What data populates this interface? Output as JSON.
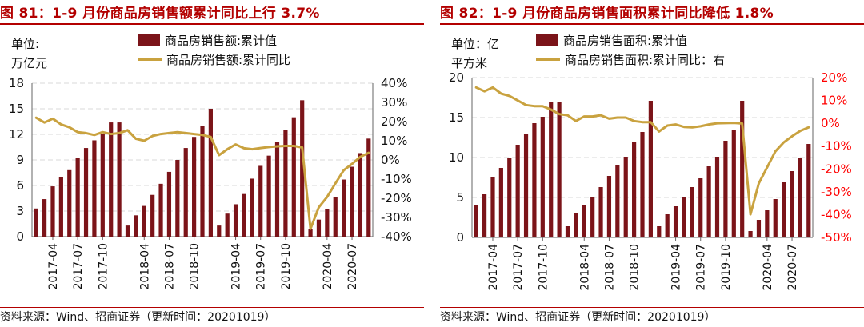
{
  "charts": [
    {
      "title": "图 81：1-9 月份商品房销售额累计同比上行 3.7%",
      "unit_line1": "单位:",
      "unit_line2": "万亿元",
      "legend_bar": "商品房销售额:累计值",
      "legend_line": "商品房销售额:累计同比",
      "source": "资料来源：Wind、招商证券（更新时间：20201019）",
      "right_axis_color": "#111111"
    },
    {
      "title": "图 82：1-9 月份商品房销售面积累计同比降低 1.8%",
      "unit_line1": "单位：亿",
      "unit_line2": "平方米",
      "legend_bar": "商品房销售面积:累计值",
      "legend_line": "商品房销售面积:累计同比：右",
      "source": "资料来源：Wind、招商证券（更新时间：20201019）",
      "right_axis_color": "#ff0000"
    }
  ],
  "colors": {
    "bar": "#7b1419",
    "line": "#c9a23f",
    "grid": "#d9d9d9",
    "title": "#b30000"
  },
  "chart_data": [
    {
      "type": "bar+line",
      "title": "1-9 月份商品房销售额累计同比上行 3.7%",
      "x": [
        "2017-02",
        "2017-03",
        "2017-04",
        "2017-05",
        "2017-06",
        "2017-07",
        "2017-08",
        "2017-09",
        "2017-10",
        "2017-11",
        "2017-12",
        "2018-02",
        "2018-03",
        "2018-04",
        "2018-05",
        "2018-06",
        "2018-07",
        "2018-08",
        "2018-09",
        "2018-10",
        "2018-11",
        "2018-12",
        "2019-02",
        "2019-03",
        "2019-04",
        "2019-05",
        "2019-06",
        "2019-07",
        "2019-08",
        "2019-09",
        "2019-10",
        "2019-11",
        "2019-12",
        "2020-02",
        "2020-03",
        "2020-04",
        "2020-05",
        "2020-06",
        "2020-07",
        "2020-08",
        "2020-09"
      ],
      "x_ticks": [
        "2017-04",
        "2017-07",
        "2017-10",
        "2018-01",
        "2018-04",
        "2018-07",
        "2018-10",
        "2019-01",
        "2019-04",
        "2019-07",
        "2019-10",
        "2020-01",
        "2020-04",
        "2020-07"
      ],
      "series": [
        {
          "name": "商品房销售额:累计值",
          "kind": "bar",
          "axis": "left",
          "values": [
            3.3,
            4.4,
            5.9,
            7.0,
            7.8,
            9.2,
            10.4,
            11.3,
            12.0,
            13.4,
            13.4,
            1.3,
            2.5,
            3.6,
            4.9,
            6.2,
            7.6,
            9.0,
            10.4,
            11.7,
            13.0,
            15.0,
            1.3,
            2.7,
            3.8,
            5.0,
            6.8,
            8.3,
            9.5,
            11.1,
            12.5,
            14.0,
            16.0,
            0.9,
            2.0,
            3.2,
            4.6,
            6.7,
            8.2,
            9.8,
            11.5
          ]
        },
        {
          "name": "商品房销售额:累计同比",
          "kind": "line",
          "axis": "right",
          "values": [
            22.0,
            19.5,
            21.5,
            18.5,
            17.0,
            14.5,
            14.0,
            13.0,
            14.5,
            13.5,
            14.0,
            15.5,
            11.0,
            10.0,
            12.5,
            13.5,
            14.0,
            14.5,
            14.0,
            13.5,
            13.0,
            12.0,
            2.5,
            5.6,
            8.1,
            6.1,
            5.6,
            6.2,
            6.7,
            7.1,
            7.3,
            7.3,
            6.5,
            -35.9,
            -24.7,
            -19.3,
            -12.3,
            -5.4,
            -2.1,
            1.6,
            3.7
          ]
        }
      ],
      "ylim_left": [
        0,
        18
      ],
      "yticks_left": [
        0,
        3,
        6,
        9,
        12,
        15,
        18
      ],
      "ylim_right": [
        -40,
        40
      ],
      "yticks_right": [
        "-40%",
        "-30%",
        "-20%",
        "-10%",
        "0%",
        "10%",
        "20%",
        "30%",
        "40%"
      ],
      "grid": true,
      "legend_position": "top"
    },
    {
      "type": "bar+line",
      "title": "1-9 月份商品房销售面积累计同比降低 1.8%",
      "x": [
        "2017-02",
        "2017-03",
        "2017-04",
        "2017-05",
        "2017-06",
        "2017-07",
        "2017-08",
        "2017-09",
        "2017-10",
        "2017-11",
        "2017-12",
        "2018-02",
        "2018-03",
        "2018-04",
        "2018-05",
        "2018-06",
        "2018-07",
        "2018-08",
        "2018-09",
        "2018-10",
        "2018-11",
        "2018-12",
        "2019-02",
        "2019-03",
        "2019-04",
        "2019-05",
        "2019-06",
        "2019-07",
        "2019-08",
        "2019-09",
        "2019-10",
        "2019-11",
        "2019-12",
        "2020-02",
        "2020-03",
        "2020-04",
        "2020-05",
        "2020-06",
        "2020-07",
        "2020-08",
        "2020-09"
      ],
      "x_ticks": [
        "2017-04",
        "2017-07",
        "2017-10",
        "2018-01",
        "2018-04",
        "2018-07",
        "2018-10",
        "2019-01",
        "2019-04",
        "2019-07",
        "2019-10",
        "2020-01",
        "2020-04",
        "2020-07"
      ],
      "series": [
        {
          "name": "商品房销售面积:累计值",
          "kind": "bar",
          "axis": "left",
          "values": [
            4.1,
            5.4,
            7.5,
            8.7,
            10.0,
            11.6,
            13.0,
            14.3,
            15.1,
            16.9,
            16.9,
            1.4,
            3.0,
            4.0,
            5.0,
            6.3,
            7.7,
            9.0,
            10.1,
            11.9,
            13.2,
            17.1,
            1.4,
            2.9,
            3.9,
            5.1,
            6.3,
            7.4,
            8.9,
            10.1,
            12.1,
            13.5,
            17.1,
            0.8,
            2.2,
            3.4,
            4.8,
            6.9,
            8.3,
            9.9,
            11.7
          ]
        },
        {
          "name": "商品房销售面积:累计同比：右",
          "kind": "line",
          "axis": "right",
          "values": [
            15.7,
            14.0,
            15.7,
            13.0,
            12.0,
            10.0,
            8.0,
            7.5,
            7.5,
            6.0,
            4.0,
            3.5,
            1.0,
            3.0,
            3.0,
            3.5,
            2.0,
            2.5,
            2.5,
            1.0,
            0.5,
            0.5,
            -3.6,
            -1.0,
            -0.5,
            -1.6,
            -1.8,
            -1.3,
            -0.5,
            0.0,
            0.1,
            0.2,
            -0.1,
            -39.9,
            -26.3,
            -19.3,
            -12.3,
            -8.4,
            -5.7,
            -3.3,
            -1.8
          ]
        }
      ],
      "ylim_left": [
        0,
        20
      ],
      "yticks_left": [
        0,
        5,
        10,
        15,
        20
      ],
      "ylim_right": [
        -50,
        20
      ],
      "yticks_right": [
        "-50%",
        "-40%",
        "-30%",
        "-20%",
        "-10%",
        "0%",
        "10%",
        "20%"
      ],
      "grid": true,
      "legend_position": "top"
    }
  ]
}
